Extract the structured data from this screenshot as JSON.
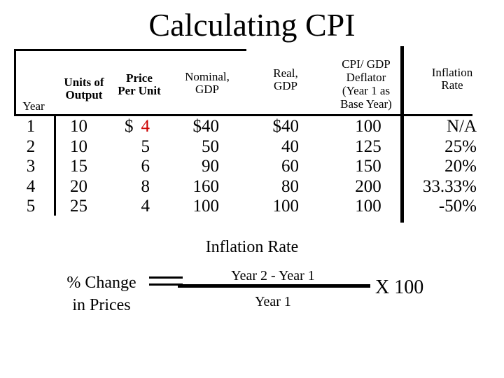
{
  "title": "Calculating CPI",
  "headers": {
    "year": "Year",
    "units_line1": "Units of",
    "units_line2": "Output",
    "price_line1": "Price",
    "price_line2": "Per Unit",
    "nominal_line1": "Nominal,",
    "nominal_line2": "GDP",
    "real_line1": "Real,",
    "real_line2": "GDP",
    "cpi_line1": "CPI/ GDP",
    "cpi_line2": "Deflator",
    "cpi_line3": "(Year 1 as",
    "cpi_line4": "Base Year)",
    "inflation_line1": "Inflation",
    "inflation_line2": "Rate"
  },
  "columns": {
    "year": [
      "1",
      "2",
      "3",
      "4",
      "5"
    ],
    "units": [
      "10",
      "10",
      "15",
      "20",
      "25"
    ],
    "price_first_symbol": "$",
    "price": [
      "4",
      "5",
      "6",
      "8",
      "4"
    ],
    "nominal": [
      "$40",
      "50",
      "90",
      "160",
      "100"
    ],
    "real": [
      "$40",
      "40",
      "60",
      "80",
      "100"
    ],
    "cpi": [
      "100",
      "125",
      "150",
      "200",
      "100"
    ],
    "inflation": [
      "N/A",
      "25%",
      "20%",
      "33.33%",
      "-50%"
    ]
  },
  "formula": {
    "title": "Inflation Rate",
    "lhs_line1": "% Change",
    "lhs_line2": "in Prices",
    "numerator": "Year 2 - Year 1",
    "denominator": "Year 1",
    "multiplier": "X 100"
  },
  "colors": {
    "highlight": "#cc0000",
    "text": "#000000"
  }
}
